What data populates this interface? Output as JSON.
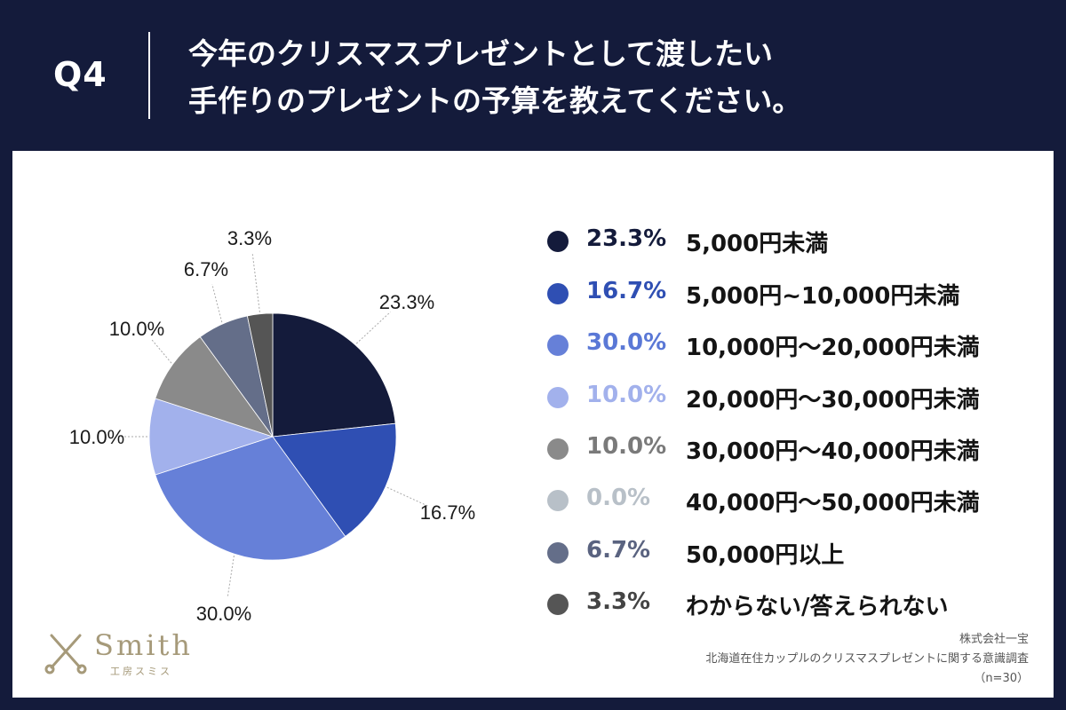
{
  "header": {
    "question_no": "Q4",
    "title_lines": [
      "今年のクリスマスプレゼントとして渡したい",
      "手作りのプレゼントの予算を教えてください。"
    ]
  },
  "colors": {
    "background": "#141b3b",
    "panel": "#ffffff",
    "slices": [
      "#141b3b",
      "#2f4fb3",
      "#6680d8",
      "#a2b1ec",
      "#8a8a8a",
      "#b8c0c8",
      "#646e89",
      "#555555"
    ]
  },
  "chart_data": {
    "type": "pie",
    "title": "今年のクリスマスプレゼントとして渡したい手作りのプレゼントの予算を教えてください。",
    "start_angle_deg": 0,
    "direction": "clockwise",
    "categories": [
      "5,000円未満",
      "5,000円~10,000円未満",
      "10,000円〜20,000円未満",
      "20,000円〜30,000円未満",
      "30,000円〜40,000円未満",
      "40,000円〜50,000円未満",
      "50,000円以上",
      "わからない/答えられない"
    ],
    "values": [
      23.3,
      16.7,
      30.0,
      10.0,
      10.0,
      0.0,
      6.7,
      3.3
    ],
    "labels": [
      "23.3%",
      "16.7%",
      "30.0%",
      "10.0%",
      "10.0%",
      "0.0%",
      "6.7%",
      "3.3%"
    ],
    "legend_position": "right"
  },
  "logo": {
    "name": "Smith",
    "sub": "工房スミス"
  },
  "source": {
    "company": "株式会社一宝",
    "survey": "北海道在住カップルのクリスマスプレゼントに関する意識調査",
    "sample": "（n=30）"
  }
}
